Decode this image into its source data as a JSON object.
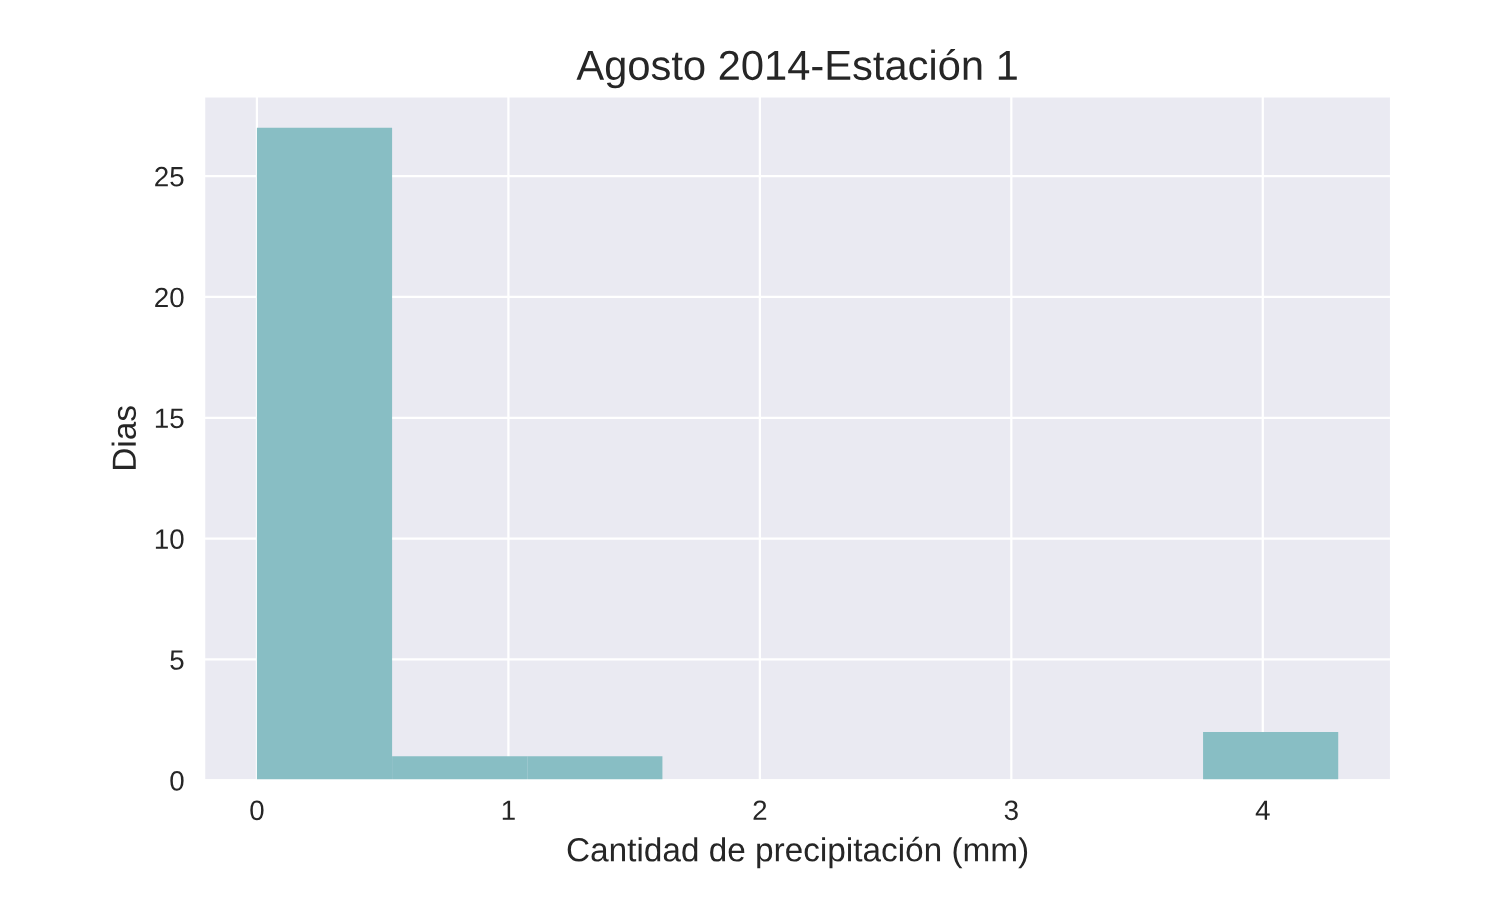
{
  "chart_data": {
    "type": "histogram",
    "title": "Agosto 2014-Estación 1",
    "xlabel": "Cantidad de precipitación (mm)",
    "ylabel": "Dias",
    "bins": [
      0,
      0.5375,
      1.075,
      1.6125,
      2.15,
      2.6875,
      3.225,
      3.7625,
      4.3
    ],
    "values": [
      27,
      1,
      1,
      0,
      0,
      0,
      0,
      2
    ],
    "color": "#88bec4",
    "xlim": [
      -0.21,
      4.51
    ],
    "xticks": [
      0,
      1,
      2,
      3,
      4
    ],
    "ylim": [
      0,
      28.3
    ],
    "yticks": [
      0,
      5,
      10,
      15,
      20,
      25
    ],
    "grid": true
  }
}
